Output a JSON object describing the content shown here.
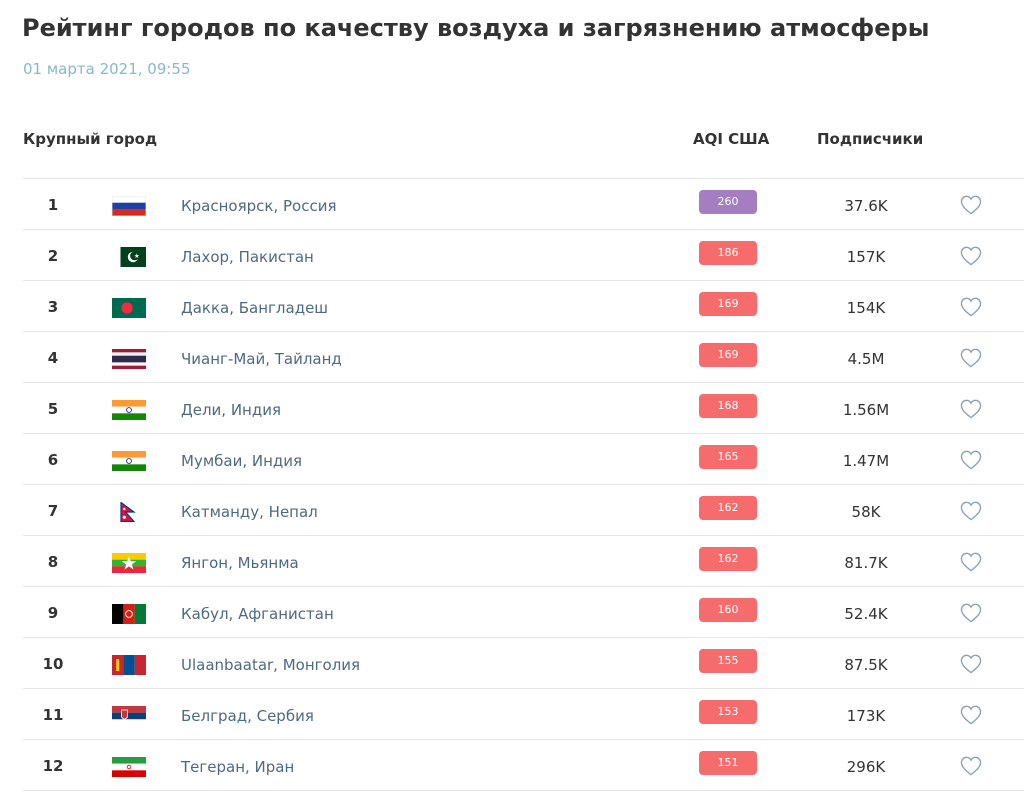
{
  "page": {
    "title": "Рейтинг городов по качеству воздуха и загрязнению атмосферы",
    "date": "01 марта 2021, 09:55"
  },
  "table": {
    "headers": {
      "city": "Крупный город",
      "aqi": "AQI США",
      "subscribers": "Подписчики"
    },
    "rows": [
      {
        "rank": "1",
        "city": "Красноярск, Россия",
        "aqi": "260",
        "subscribers": "37.6K",
        "flag": "russia-flag-icon",
        "aqi_color": "#a47ec1"
      },
      {
        "rank": "2",
        "city": "Лахор, Пакистан",
        "aqi": "186",
        "subscribers": "157K",
        "flag": "pakistan-flag-icon",
        "aqi_color": "#f66c6c"
      },
      {
        "rank": "3",
        "city": "Дакка, Бангладеш",
        "aqi": "169",
        "subscribers": "154K",
        "flag": "bangladesh-flag-icon",
        "aqi_color": "#f66c6c"
      },
      {
        "rank": "4",
        "city": "Чианг-Май, Тайланд",
        "aqi": "169",
        "subscribers": "4.5M",
        "flag": "thailand-flag-icon",
        "aqi_color": "#f66c6c"
      },
      {
        "rank": "5",
        "city": "Дели, Индия",
        "aqi": "168",
        "subscribers": "1.56M",
        "flag": "india-flag-icon",
        "aqi_color": "#f66c6c"
      },
      {
        "rank": "6",
        "city": "Мумбаи, Индия",
        "aqi": "165",
        "subscribers": "1.47M",
        "flag": "india-flag-icon",
        "aqi_color": "#f66c6c"
      },
      {
        "rank": "7",
        "city": "Катманду, Непал",
        "aqi": "162",
        "subscribers": "58K",
        "flag": "nepal-flag-icon",
        "aqi_color": "#f66c6c"
      },
      {
        "rank": "8",
        "city": "Янгон, Мьянма",
        "aqi": "162",
        "subscribers": "81.7K",
        "flag": "myanmar-flag-icon",
        "aqi_color": "#f66c6c"
      },
      {
        "rank": "9",
        "city": "Кабул, Афганистан",
        "aqi": "160",
        "subscribers": "52.4K",
        "flag": "afghanistan-flag-icon",
        "aqi_color": "#f66c6c"
      },
      {
        "rank": "10",
        "city": "Ulaanbaatar, Монголия",
        "aqi": "155",
        "subscribers": "87.5K",
        "flag": "mongolia-flag-icon",
        "aqi_color": "#f66c6c"
      },
      {
        "rank": "11",
        "city": "Белград, Сербия",
        "aqi": "153",
        "subscribers": "173K",
        "flag": "serbia-flag-icon",
        "aqi_color": "#f66c6c"
      },
      {
        "rank": "12",
        "city": "Тегеран, Иран",
        "aqi": "151",
        "subscribers": "296K",
        "flag": "iran-flag-icon",
        "aqi_color": "#f66c6c"
      }
    ]
  },
  "icons": {
    "favorite": "heart-outline-icon"
  }
}
